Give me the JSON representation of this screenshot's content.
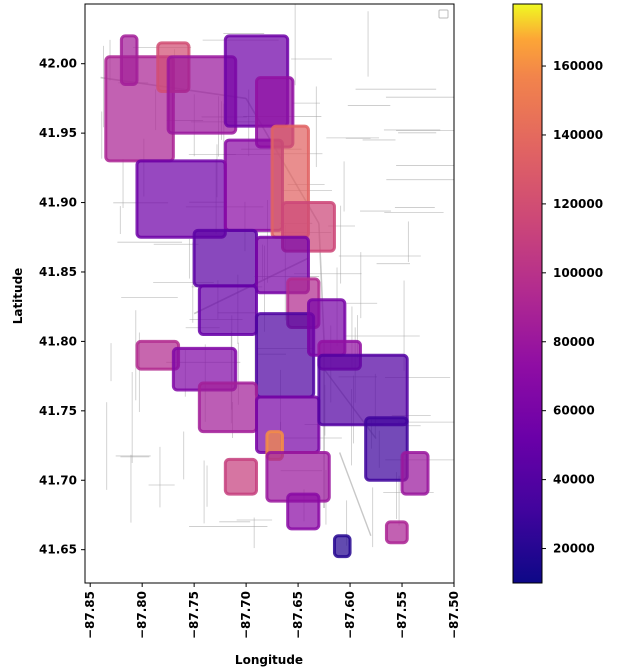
{
  "chart_data": {
    "type": "scatter",
    "title": "",
    "xlabel": "Longitude",
    "ylabel": "Latitude",
    "xlim": [
      -87.855,
      -87.5
    ],
    "ylim": [
      41.626,
      42.043
    ],
    "x_ticks": [
      -87.85,
      -87.8,
      -87.75,
      -87.7,
      -87.65,
      -87.6,
      -87.55,
      -87.5
    ],
    "x_tick_labels": [
      "−87.85",
      "−87.80",
      "−87.75",
      "−87.70",
      "−87.65",
      "−87.60",
      "−87.55",
      "−87.50"
    ],
    "y_ticks": [
      41.65,
      41.7,
      41.75,
      41.8,
      41.85,
      41.9,
      41.95,
      42.0
    ],
    "y_tick_labels": [
      "41.65",
      "41.70",
      "41.75",
      "41.80",
      "41.85",
      "41.90",
      "41.95",
      "42.00"
    ],
    "grid": false,
    "legend": {
      "placement": "top-right",
      "entries": []
    },
    "colorbar": {
      "colormap": "plasma",
      "range": [
        10000,
        178000
      ],
      "ticks": [
        20000,
        40000,
        60000,
        80000,
        100000,
        120000,
        140000,
        160000
      ],
      "tick_labels": [
        "20000",
        "40000",
        "60000",
        "80000",
        "100000",
        "120000",
        "140000",
        "160000"
      ]
    },
    "background_layer": "street network (gray lines)",
    "regions": [
      {
        "lon": [
          -87.835,
          -87.77
        ],
        "lat": [
          41.93,
          42.005
        ],
        "value": 90000
      },
      {
        "lon": [
          -87.82,
          -87.805
        ],
        "lat": [
          41.985,
          42.02
        ],
        "value": 85000
      },
      {
        "lon": [
          -87.785,
          -87.755
        ],
        "lat": [
          41.98,
          42.015
        ],
        "value": 120000
      },
      {
        "lon": [
          -87.775,
          -87.71
        ],
        "lat": [
          41.95,
          42.005
        ],
        "value": 80000
      },
      {
        "lon": [
          -87.72,
          -87.66
        ],
        "lat": [
          41.955,
          42.02
        ],
        "value": 55000
      },
      {
        "lon": [
          -87.69,
          -87.655
        ],
        "lat": [
          41.94,
          41.99
        ],
        "value": 75000
      },
      {
        "lon": [
          -87.805,
          -87.72
        ],
        "lat": [
          41.875,
          41.93
        ],
        "value": 55000
      },
      {
        "lon": [
          -87.72,
          -87.665
        ],
        "lat": [
          41.88,
          41.945
        ],
        "value": 70000
      },
      {
        "lon": [
          -87.675,
          -87.64
        ],
        "lat": [
          41.875,
          41.955
        ],
        "value": 135000
      },
      {
        "lon": [
          -87.665,
          -87.615
        ],
        "lat": [
          41.865,
          41.9
        ],
        "value": 115000
      },
      {
        "lon": [
          -87.75,
          -87.69
        ],
        "lat": [
          41.84,
          41.88
        ],
        "value": 45000
      },
      {
        "lon": [
          -87.69,
          -87.64
        ],
        "lat": [
          41.835,
          41.875
        ],
        "value": 60000
      },
      {
        "lon": [
          -87.66,
          -87.63
        ],
        "lat": [
          41.81,
          41.845
        ],
        "value": 95000
      },
      {
        "lon": [
          -87.745,
          -87.69
        ],
        "lat": [
          41.805,
          41.84
        ],
        "value": 50000
      },
      {
        "lon": [
          -87.69,
          -87.635
        ],
        "lat": [
          41.76,
          41.82
        ],
        "value": 38000
      },
      {
        "lon": [
          -87.64,
          -87.605
        ],
        "lat": [
          41.79,
          41.83
        ],
        "value": 60000
      },
      {
        "lon": [
          -87.63,
          -87.59
        ],
        "lat": [
          41.78,
          41.8
        ],
        "value": 75000
      },
      {
        "lon": [
          -87.805,
          -87.765
        ],
        "lat": [
          41.78,
          41.8
        ],
        "value": 95000
      },
      {
        "lon": [
          -87.77,
          -87.71
        ],
        "lat": [
          41.765,
          41.795
        ],
        "value": 65000
      },
      {
        "lon": [
          -87.745,
          -87.69
        ],
        "lat": [
          41.735,
          41.77
        ],
        "value": 85000
      },
      {
        "lon": [
          -87.69,
          -87.63
        ],
        "lat": [
          41.72,
          41.76
        ],
        "value": 60000
      },
      {
        "lon": [
          -87.68,
          -87.665
        ],
        "lat": [
          41.715,
          41.735
        ],
        "value": 160000
      },
      {
        "lon": [
          -87.72,
          -87.69
        ],
        "lat": [
          41.69,
          41.715
        ],
        "value": 110000
      },
      {
        "lon": [
          -87.68,
          -87.62
        ],
        "lat": [
          41.685,
          41.72
        ],
        "value": 80000
      },
      {
        "lon": [
          -87.66,
          -87.63
        ],
        "lat": [
          41.665,
          41.69
        ],
        "value": 70000
      },
      {
        "lon": [
          -87.63,
          -87.545
        ],
        "lat": [
          41.74,
          41.79
        ],
        "value": 40000
      },
      {
        "lon": [
          -87.585,
          -87.545
        ],
        "lat": [
          41.7,
          41.745
        ],
        "value": 30000
      },
      {
        "lon": [
          -87.55,
          -87.525
        ],
        "lat": [
          41.69,
          41.72
        ],
        "value": 80000
      },
      {
        "lon": [
          -87.565,
          -87.545
        ],
        "lat": [
          41.655,
          41.67
        ],
        "value": 90000
      },
      {
        "lon": [
          -87.615,
          -87.6
        ],
        "lat": [
          41.645,
          41.66
        ],
        "value": 20000
      }
    ]
  }
}
